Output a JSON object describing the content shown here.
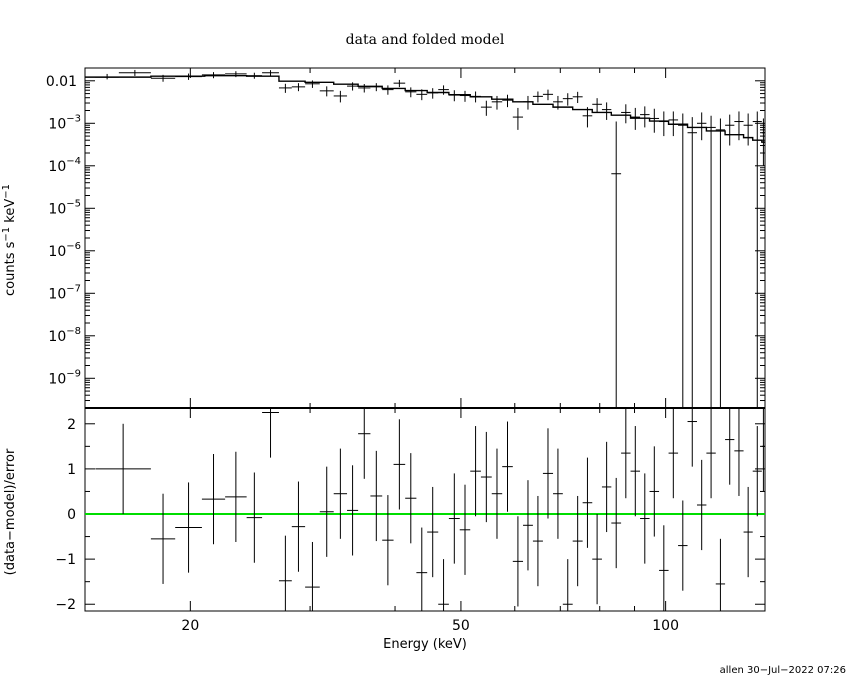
{
  "chart_data": [
    {
      "type": "scatter",
      "title": "data and folded model",
      "ylabel_main": "counts s",
      "ylabel_sup1": "−1",
      "ylabel_mid": " keV",
      "ylabel_sup2": "−1",
      "xscale": "log",
      "yscale": "log",
      "xlim": [
        14,
        140
      ],
      "ylim": [
        2e-10,
        0.02
      ],
      "y_ticks": [
        {
          "v": 0.01,
          "base": "0.01",
          "exp": ""
        },
        {
          "v": 0.001,
          "base": "10",
          "exp": "−3"
        },
        {
          "v": 0.0001,
          "base": "10",
          "exp": "−4"
        },
        {
          "v": 1e-05,
          "base": "10",
          "exp": "−5"
        },
        {
          "v": 1e-06,
          "base": "10",
          "exp": "−6"
        },
        {
          "v": 1e-07,
          "base": "10",
          "exp": "−7"
        },
        {
          "v": 1e-08,
          "base": "10",
          "exp": "−8"
        },
        {
          "v": 1e-09,
          "base": "10",
          "exp": "−9"
        }
      ],
      "data_points": [
        [
          14.5,
          15.7,
          0.0122,
          0.0145,
          0.0108
        ],
        [
          15.7,
          17.5,
          0.0155,
          0.018,
          0.013
        ],
        [
          17.5,
          19.0,
          0.0115,
          0.0138,
          0.0095
        ],
        [
          19.0,
          20.8,
          0.0125,
          0.0148,
          0.0105
        ],
        [
          20.8,
          22.5,
          0.0138,
          0.016,
          0.0115
        ],
        [
          22.5,
          24.2,
          0.0145,
          0.0168,
          0.0122
        ],
        [
          24.2,
          25.5,
          0.0132,
          0.0155,
          0.0112
        ],
        [
          25.5,
          27.0,
          0.0155,
          0.0178,
          0.0132
        ],
        [
          27.0,
          28.2,
          0.0068,
          0.0085,
          0.0052
        ],
        [
          28.2,
          29.5,
          0.0072,
          0.0088,
          0.0057
        ],
        [
          29.5,
          31.0,
          0.0085,
          0.0102,
          0.0068
        ],
        [
          31.0,
          32.5,
          0.0058,
          0.0074,
          0.0043
        ],
        [
          32.5,
          34.0,
          0.0044,
          0.0058,
          0.0031
        ],
        [
          34.0,
          35.3,
          0.0075,
          0.0092,
          0.0059
        ],
        [
          35.3,
          36.8,
          0.0068,
          0.0084,
          0.0053
        ],
        [
          36.8,
          38.3,
          0.0072,
          0.0088,
          0.0057
        ],
        [
          38.3,
          39.8,
          0.0062,
          0.0078,
          0.0047
        ],
        [
          39.8,
          41.4,
          0.0088,
          0.0105,
          0.0071
        ],
        [
          41.4,
          43.0,
          0.0055,
          0.007,
          0.0041
        ],
        [
          43.0,
          44.6,
          0.0048,
          0.0063,
          0.0035
        ],
        [
          44.6,
          46.3,
          0.0052,
          0.0067,
          0.0038
        ],
        [
          46.3,
          48.0,
          0.0062,
          0.0078,
          0.0047
        ],
        [
          48.0,
          49.8,
          0.0046,
          0.006,
          0.0033
        ],
        [
          49.8,
          51.6,
          0.0045,
          0.0058,
          0.0032
        ],
        [
          51.6,
          53.5,
          0.0043,
          0.0056,
          0.0031
        ],
        [
          53.5,
          55.5,
          0.0024,
          0.0034,
          0.0015
        ],
        [
          55.5,
          57.5,
          0.0032,
          0.0044,
          0.0021
        ],
        [
          57.5,
          59.6,
          0.0035,
          0.0047,
          0.0024
        ],
        [
          59.6,
          61.7,
          0.0014,
          0.0023,
          0.0007
        ],
        [
          61.7,
          63.8,
          0.0032,
          0.0044,
          0.0021
        ],
        [
          63.8,
          66.0,
          0.0043,
          0.0056,
          0.0031
        ],
        [
          66.0,
          68.3,
          0.0048,
          0.0062,
          0.0035
        ],
        [
          68.3,
          70.6,
          0.0032,
          0.0044,
          0.0021
        ],
        [
          70.6,
          73.0,
          0.0038,
          0.0051,
          0.0026
        ],
        [
          73.0,
          75.5,
          0.0042,
          0.0055,
          0.003
        ],
        [
          75.5,
          78.0,
          0.0015,
          0.0024,
          0.0008
        ],
        [
          78.0,
          80.6,
          0.0028,
          0.0039,
          0.0018
        ],
        [
          80.6,
          83.2,
          0.0021,
          0.0031,
          0.0012
        ],
        [
          83.2,
          86.0,
          6.5e-05,
          0.0011,
          1e-12
        ],
        [
          86.0,
          88.8,
          0.0018,
          0.0028,
          0.001
        ],
        [
          88.8,
          91.7,
          0.0014,
          0.0023,
          0.0007
        ],
        [
          91.7,
          94.7,
          0.0016,
          0.0025,
          0.0008
        ],
        [
          94.7,
          97.8,
          0.0013,
          0.0022,
          0.0006
        ],
        [
          97.8,
          101.0,
          0.0011,
          0.0019,
          0.0005
        ],
        [
          101.0,
          104.3,
          0.0012,
          0.0019,
          0.0005
        ],
        [
          104.3,
          107.7,
          0.0009,
          0.0017,
          1e-12
        ],
        [
          107.7,
          111.2,
          0.0006,
          0.0014,
          1e-12
        ],
        [
          111.2,
          114.8,
          0.001,
          0.0018,
          0.0004
        ],
        [
          114.8,
          118.5,
          0.0008,
          0.0015,
          1e-12
        ],
        [
          118.5,
          122.3,
          0.0007,
          0.0013,
          1e-12
        ],
        [
          122.3,
          126.2,
          0.0009,
          0.0016,
          0.0003
        ],
        [
          126.2,
          130.2,
          0.0011,
          0.0019,
          0.0004
        ],
        [
          130.2,
          134.3,
          0.0009,
          0.0017,
          0.0003
        ],
        [
          134.3,
          138.5,
          0.0011,
          0.0019,
          1e-12
        ],
        [
          138.5,
          140.0,
          0.0006,
          0.0013,
          0.0001
        ]
      ],
      "model_steps": [
        [
          14.0,
          17.5,
          0.0122
        ],
        [
          17.5,
          21.0,
          0.0128
        ],
        [
          21.0,
          24.2,
          0.0132
        ],
        [
          24.2,
          27.0,
          0.0128
        ],
        [
          27.0,
          29.5,
          0.0098
        ],
        [
          29.5,
          32.5,
          0.0092
        ],
        [
          32.5,
          35.3,
          0.0083
        ],
        [
          35.3,
          38.3,
          0.0074
        ],
        [
          38.3,
          41.4,
          0.0066
        ],
        [
          41.4,
          44.6,
          0.0059
        ],
        [
          44.6,
          48.0,
          0.0053
        ],
        [
          48.0,
          51.6,
          0.0047
        ],
        [
          51.6,
          55.5,
          0.0042
        ],
        [
          55.5,
          59.6,
          0.0037
        ],
        [
          59.6,
          63.8,
          0.0032
        ],
        [
          63.8,
          68.3,
          0.0028
        ],
        [
          68.3,
          73.0,
          0.0024
        ],
        [
          73.0,
          78.0,
          0.0021
        ],
        [
          78.0,
          83.2,
          0.0018
        ],
        [
          83.2,
          88.8,
          0.00155
        ],
        [
          88.8,
          94.7,
          0.00132
        ],
        [
          94.7,
          101.0,
          0.00113
        ],
        [
          101.0,
          107.7,
          0.00095
        ],
        [
          107.7,
          114.8,
          0.0008
        ],
        [
          114.8,
          122.3,
          0.00066
        ],
        [
          122.3,
          130.2,
          0.00054
        ],
        [
          130.2,
          134.3,
          0.00046
        ],
        [
          134.3,
          138.5,
          0.0004
        ],
        [
          138.5,
          140.0,
          0.00036
        ]
      ]
    },
    {
      "type": "scatter",
      "ylabel": "(data−model)/error",
      "xlabel": "Energy (keV)",
      "xscale": "log",
      "xlim": [
        14,
        140
      ],
      "ylim": [
        -2.15,
        2.35
      ],
      "x_ticks": [
        20,
        50,
        100
      ],
      "y_ticks": [
        -2,
        -1,
        0,
        1,
        2
      ],
      "zero_line_color": "#00dd00",
      "residuals": [
        [
          14.5,
          17.5,
          1.0,
          0.0,
          2.0
        ],
        [
          17.5,
          19.0,
          -0.55,
          -1.55,
          0.45
        ],
        [
          19.0,
          20.8,
          -0.3,
          -1.3,
          0.7
        ],
        [
          20.8,
          22.5,
          0.33,
          -0.67,
          1.33
        ],
        [
          22.5,
          24.2,
          0.38,
          -0.62,
          1.38
        ],
        [
          24.2,
          25.5,
          -0.08,
          -1.08,
          0.92
        ],
        [
          25.5,
          27.0,
          2.25,
          1.25,
          3.25
        ],
        [
          27.0,
          28.2,
          -1.48,
          -2.48,
          -0.48
        ],
        [
          28.2,
          29.5,
          -0.28,
          -1.28,
          0.72
        ],
        [
          29.5,
          31.0,
          -1.62,
          -2.62,
          -0.62
        ],
        [
          31.0,
          32.5,
          0.05,
          -0.95,
          1.05
        ],
        [
          32.5,
          34.0,
          0.45,
          -0.55,
          1.45
        ],
        [
          34.0,
          35.3,
          0.08,
          -0.92,
          1.08
        ],
        [
          35.3,
          36.8,
          1.78,
          0.78,
          2.78
        ],
        [
          36.8,
          38.3,
          0.4,
          -0.6,
          1.4
        ],
        [
          38.3,
          39.8,
          -0.58,
          -1.58,
          0.42
        ],
        [
          39.8,
          41.4,
          1.1,
          0.1,
          2.1
        ],
        [
          41.4,
          43.0,
          0.35,
          -0.65,
          1.35
        ],
        [
          43.0,
          44.6,
          -1.3,
          -2.3,
          -0.3
        ],
        [
          44.6,
          46.3,
          -0.4,
          -1.4,
          0.6
        ],
        [
          46.3,
          48.0,
          -2.0,
          -3.0,
          -1.0
        ],
        [
          48.0,
          49.8,
          -0.1,
          -1.1,
          0.9
        ],
        [
          49.8,
          51.6,
          -0.35,
          -1.35,
          0.65
        ],
        [
          51.6,
          53.5,
          0.95,
          -0.05,
          1.95
        ],
        [
          53.5,
          55.5,
          0.82,
          -0.18,
          1.82
        ],
        [
          55.5,
          57.5,
          0.45,
          -0.55,
          1.45
        ],
        [
          57.5,
          59.6,
          1.05,
          0.05,
          2.05
        ],
        [
          59.6,
          61.7,
          -1.05,
          -2.05,
          -0.05
        ],
        [
          61.7,
          63.8,
          -0.25,
          -1.25,
          0.75
        ],
        [
          63.8,
          66.0,
          -0.6,
          -1.6,
          0.4
        ],
        [
          66.0,
          68.3,
          0.9,
          -0.1,
          1.9
        ],
        [
          68.3,
          70.6,
          0.45,
          -0.55,
          1.45
        ],
        [
          70.6,
          73.0,
          -2.0,
          -3.0,
          -1.0
        ],
        [
          73.0,
          75.5,
          -0.6,
          -1.6,
          0.4
        ],
        [
          75.5,
          78.0,
          0.25,
          -0.75,
          1.25
        ],
        [
          78.0,
          80.6,
          -1.0,
          -2.0,
          0.0
        ],
        [
          80.6,
          83.2,
          0.6,
          -0.4,
          1.6
        ],
        [
          83.2,
          86.0,
          -0.2,
          -1.2,
          0.8
        ],
        [
          86.0,
          88.8,
          1.35,
          0.35,
          2.35
        ],
        [
          88.8,
          91.7,
          0.95,
          -0.05,
          1.95
        ],
        [
          91.7,
          94.7,
          -0.1,
          -1.1,
          0.9
        ],
        [
          94.7,
          97.8,
          0.5,
          -0.5,
          1.5
        ],
        [
          97.8,
          101.0,
          -1.25,
          -2.25,
          -0.25
        ],
        [
          101.0,
          104.3,
          1.35,
          0.35,
          2.35
        ],
        [
          104.3,
          107.7,
          -0.7,
          -1.7,
          0.3
        ],
        [
          107.7,
          111.2,
          2.05,
          1.05,
          3.05
        ],
        [
          111.2,
          114.8,
          0.2,
          -0.8,
          1.2
        ],
        [
          114.8,
          118.5,
          1.35,
          0.35,
          2.35
        ],
        [
          118.5,
          122.3,
          -1.55,
          -2.55,
          -0.55
        ],
        [
          122.3,
          126.2,
          1.65,
          0.65,
          2.65
        ],
        [
          126.2,
          130.2,
          1.4,
          0.4,
          2.4
        ],
        [
          130.2,
          134.3,
          -0.4,
          -1.4,
          0.6
        ],
        [
          134.3,
          138.5,
          0.95,
          -0.05,
          1.95
        ],
        [
          138.5,
          140.0,
          1.5,
          0.5,
          2.5
        ]
      ]
    }
  ],
  "footer": "allen 30−Jul−2022 07:26"
}
